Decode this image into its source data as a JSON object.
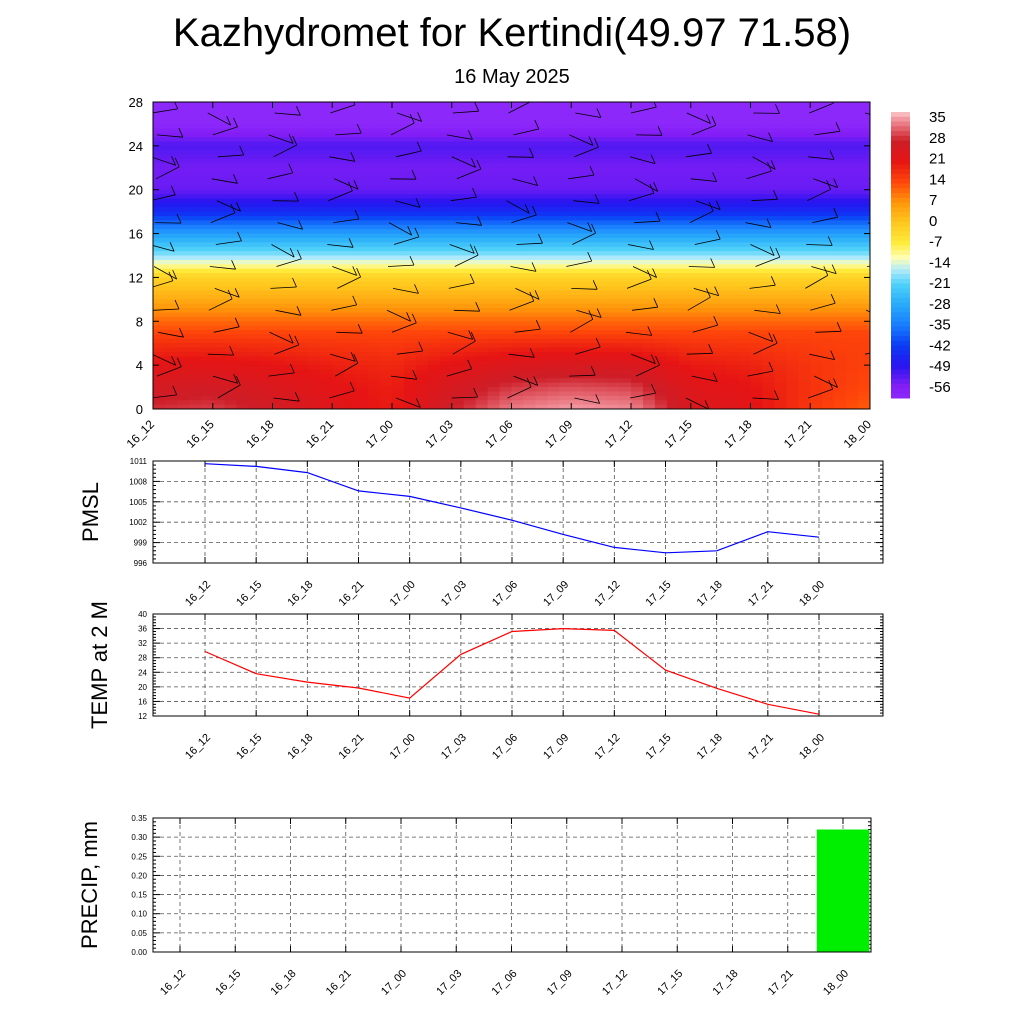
{
  "header": {
    "title": "Kazhydromet for Kertindi(49.97 71.58)",
    "subtitle": "16 May 2025"
  },
  "chart_data": [
    {
      "type": "heatmap",
      "name": "temperature-cross-section",
      "title": "",
      "xlabel": "",
      "ylabel": "",
      "x_tick_labels": [
        "16_12",
        "16_15",
        "16_18",
        "16_21",
        "17_00",
        "17_03",
        "17_06",
        "17_09",
        "17_12",
        "17_15",
        "17_18",
        "17_21",
        "18_00"
      ],
      "y_ticks": [
        0,
        4,
        8,
        12,
        16,
        20,
        24,
        28
      ],
      "ylim": [
        0,
        28
      ],
      "colorbar": {
        "labels": [
          "35",
          "28",
          "21",
          "14",
          "7",
          "0",
          "-7",
          "-14",
          "-21",
          "-28",
          "-35",
          "-42",
          "-49",
          "-56"
        ],
        "range": [
          -60,
          38
        ]
      },
      "layers": {
        "levels": [
          0,
          2,
          4,
          6,
          8,
          10,
          12,
          14,
          16,
          18,
          20,
          22,
          24,
          26,
          28
        ],
        "profile_c": [
          29,
          26,
          22,
          17,
          11,
          4,
          -2,
          -18,
          -30,
          -45,
          -54,
          -55,
          -52,
          -60,
          -60
        ]
      },
      "surface_c": [
        29,
        30,
        27,
        23,
        20,
        28,
        34,
        36,
        35,
        25,
        22,
        16,
        12
      ],
      "wind_barbs": true
    },
    {
      "type": "line",
      "name": "pmsl",
      "ylabel": "PMSL",
      "x_tick_labels": [
        "16_12",
        "16_15",
        "16_18",
        "16_21",
        "17_00",
        "17_03",
        "17_06",
        "17_09",
        "17_12",
        "17_15",
        "17_18",
        "17_21",
        "18_00"
      ],
      "y_tick_labels": [
        "996",
        "999",
        "1002",
        "1005",
        "1008",
        "1011"
      ],
      "ylim": [
        996,
        1011
      ],
      "color": "#0000ff",
      "values": [
        1010.6,
        1010.2,
        1009.3,
        1006.6,
        1005.8,
        1004.1,
        1002.3,
        1000.2,
        998.3,
        997.5,
        997.8,
        1000.6,
        999.8
      ]
    },
    {
      "type": "line",
      "name": "temp-2m",
      "ylabel": "TEMP at 2 M",
      "x_tick_labels": [
        "16_12",
        "16_15",
        "16_18",
        "16_21",
        "17_00",
        "17_03",
        "17_06",
        "17_09",
        "17_12",
        "17_15",
        "17_18",
        "17_21",
        "18_00"
      ],
      "y_tick_labels": [
        "12",
        "16",
        "20",
        "24",
        "28",
        "32",
        "36",
        "40"
      ],
      "ylim": [
        12,
        40
      ],
      "color": "#ff0000",
      "values": [
        29.7,
        23.6,
        21.3,
        19.7,
        16.9,
        28.9,
        35.2,
        36.0,
        35.5,
        24.6,
        19.6,
        15.2,
        12.5
      ]
    },
    {
      "type": "bar",
      "name": "precip",
      "ylabel": "PRECIP, mm",
      "x_tick_labels": [
        "16_12",
        "16_15",
        "16_18",
        "16_21",
        "17_00",
        "17_03",
        "17_06",
        "17_09",
        "17_12",
        "17_15",
        "17_18",
        "17_21",
        "18_00"
      ],
      "y_tick_labels": [
        "0.00",
        "0.05",
        "0.10",
        "0.15",
        "0.20",
        "0.25",
        "0.30",
        "0.35"
      ],
      "ylim": [
        0,
        0.35
      ],
      "color": "#00ee00",
      "values": [
        0,
        0,
        0,
        0,
        0,
        0,
        0,
        0,
        0,
        0,
        0,
        0,
        0.32
      ]
    }
  ]
}
